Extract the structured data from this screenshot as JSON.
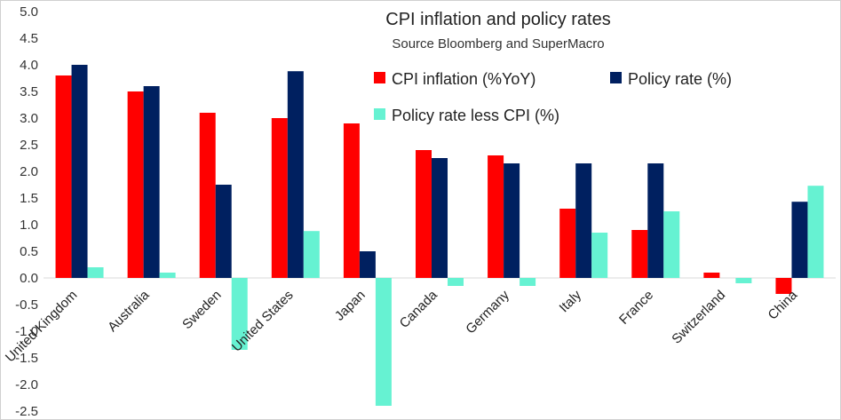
{
  "chart_data": {
    "type": "bar",
    "title": "CPI inflation and policy rates",
    "subtitle": "Source Bloomberg and SuperMacro",
    "categories": [
      "United Kingdom",
      "Australia",
      "Sweden",
      "United States",
      "Japan",
      "Canada",
      "Germany",
      "Italy",
      "France",
      "Switzerland",
      "China"
    ],
    "series": [
      {
        "name": "CPI inflation (%YoY)",
        "color": "#ff0000",
        "values": [
          3.8,
          3.5,
          3.1,
          3.0,
          2.9,
          2.4,
          2.3,
          1.3,
          0.9,
          0.1,
          -0.3
        ]
      },
      {
        "name": "Policy rate (%)",
        "color": "#002060",
        "values": [
          4.0,
          3.6,
          1.75,
          3.88,
          0.5,
          2.25,
          2.15,
          2.15,
          2.15,
          0.0,
          1.43
        ]
      },
      {
        "name": "Policy rate less CPI (%)",
        "color": "#66f2d2",
        "values": [
          0.2,
          0.1,
          -1.35,
          0.88,
          -2.4,
          -0.15,
          -0.15,
          0.85,
          1.25,
          -0.1,
          1.73
        ]
      }
    ],
    "y_ticks": [
      "5.0",
      "4.5",
      "4.0",
      "3.5",
      "3.0",
      "2.5",
      "2.0",
      "1.5",
      "1.0",
      "0.5",
      "0.0",
      "-0.5",
      "-1.0",
      "-1.5",
      "-2.0",
      "-2.5"
    ],
    "ylim": [
      -2.5,
      5.0
    ],
    "grid": false,
    "legend_position": "top-right"
  }
}
